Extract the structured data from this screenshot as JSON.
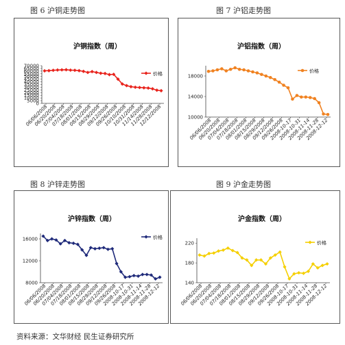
{
  "captions": [
    "图 6  沪铜走势图",
    "图 7  沪铝走势图",
    "图 8 沪锌走势图",
    "图 9  沪金走势图"
  ],
  "source": "资料来源：文华财经  民生证券研究所",
  "chart_data": [
    {
      "type": "line",
      "title": "沪铜指数（周）",
      "legend": "价格",
      "legend_position": "right",
      "color": "#e8231c",
      "marker": "diamond",
      "ylim": [
        0,
        70000
      ],
      "yticks": [
        "0",
        "5000",
        "10000",
        "15000",
        "20000",
        "25000",
        "30000",
        "35000",
        "40000",
        "45000",
        "50000",
        "55000",
        "60000",
        "65000",
        "70000"
      ],
      "xticks": [
        "06/06/2008",
        "06/20/2008",
        "07/04/2008",
        "07/18/2008",
        "08/01/2008",
        "08/15/2008",
        "08/29/2008",
        "09/12/2008",
        "09/26/2008",
        "10/10/2008",
        "10/31/2008",
        "11/14/2008",
        "11/28/2008",
        "12/12/2008"
      ],
      "values": [
        60500,
        60800,
        61500,
        62000,
        62300,
        62500,
        61800,
        61500,
        60800,
        59500,
        57500,
        59000,
        57500,
        56000,
        55500,
        53500,
        54000,
        45000,
        36000,
        33000,
        31000,
        30000,
        29500,
        29000,
        28500,
        27000,
        24500,
        23500
      ]
    },
    {
      "type": "line",
      "title": "沪铝指数（周）",
      "legend": "价格",
      "legend_position": "right",
      "color": "#f08221",
      "marker": "circle",
      "ylim": [
        10000,
        20000
      ],
      "yticks": [
        "10000",
        "14000",
        "18000"
      ],
      "xticks": [
        "06/06/2008",
        "06/20/2008",
        "07/04/2008",
        "07/18/2008",
        "08/01/2008",
        "08/15/2008",
        "08/29/2008",
        "09/12/2008",
        "09/26/2008",
        "2008-10-17",
        "2008-10-31",
        "2008-11-14",
        "2008-11-28",
        "2008-12-12"
      ],
      "values": [
        18900,
        19000,
        19200,
        19400,
        19000,
        19300,
        19600,
        19300,
        19200,
        19000,
        18800,
        18600,
        18300,
        18000,
        17700,
        17300,
        16800,
        16200,
        15700,
        13500,
        14200,
        13900,
        13900,
        13800,
        13600,
        12800,
        10600,
        10500
      ]
    },
    {
      "type": "line",
      "title": "沪锌指数（周）",
      "legend": "价格",
      "legend_position": "right",
      "color": "#1f2a7a",
      "marker": "diamond",
      "ylim": [
        8000,
        17000
      ],
      "yticks": [
        "8000",
        "12000",
        "16000"
      ],
      "xticks": [
        "06/06/2008",
        "06/20/2008",
        "07/04/2008",
        "07/18/2008",
        "08/01/2008",
        "08/15/2008",
        "08/29/2008",
        "09/12/2008",
        "09/26/2008",
        "2008-10-17",
        "2008-10-31",
        "2008-11-14",
        "2008-11-28",
        "2008-12-12"
      ],
      "values": [
        16500,
        15700,
        16000,
        15800,
        15100,
        15700,
        15300,
        15200,
        15000,
        14000,
        13000,
        14400,
        14200,
        14300,
        14400,
        14100,
        14200,
        11500,
        10000,
        9000,
        9100,
        9300,
        9200,
        9500,
        9500,
        9400,
        8700,
        9000
      ]
    },
    {
      "type": "line",
      "title": "沪金指数（周）",
      "legend": "价格",
      "legend_position": "right",
      "color": "#f5cf00",
      "marker": "diamond",
      "ylim": [
        140,
        230
      ],
      "yticks": [
        "140",
        "180",
        "220"
      ],
      "xticks": [
        "06/06/2008",
        "06/20/2008",
        "07/04/2008",
        "07/18/2008",
        "08/01/2008",
        "08/15/2008",
        "08/29/2008",
        "09/12/2008",
        "09/26/2008",
        "2008-10-17",
        "2008-10-31",
        "2008-11-14",
        "2008-11-28",
        "2008-12-12"
      ],
      "values": [
        196,
        194,
        199,
        200,
        204,
        206,
        210,
        205,
        201,
        190,
        186,
        175,
        186,
        186,
        178,
        190,
        196,
        202,
        172,
        148,
        158,
        160,
        159,
        163,
        178,
        170,
        175,
        178
      ]
    }
  ]
}
